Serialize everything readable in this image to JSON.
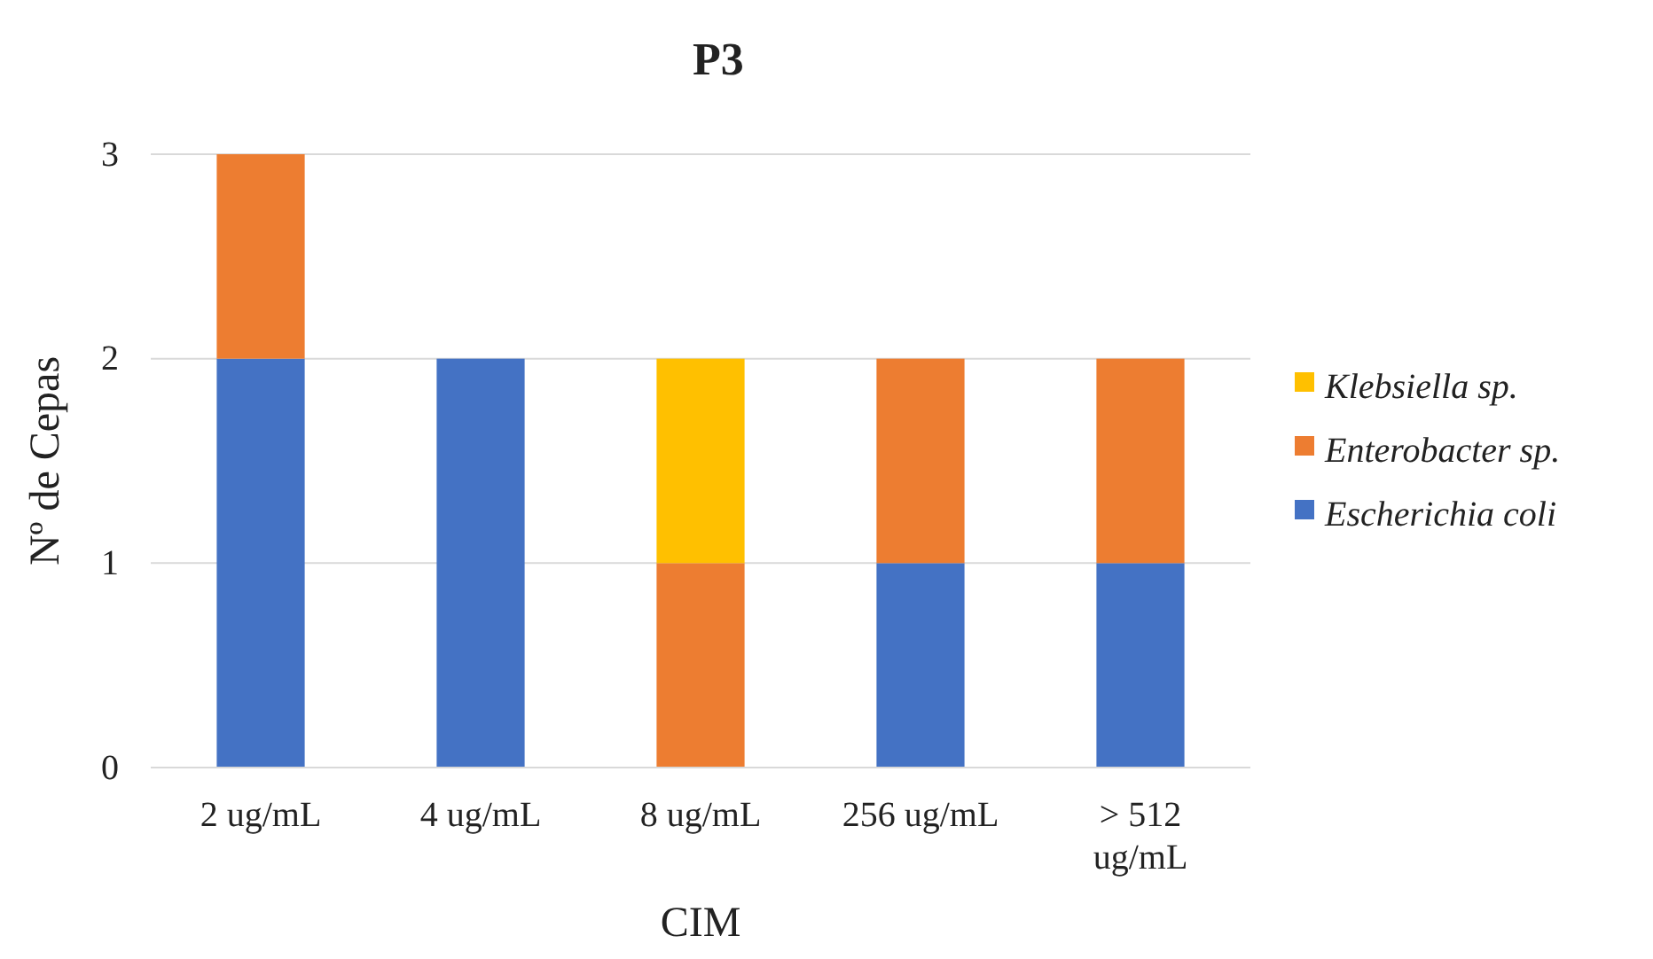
{
  "chart_data": {
    "type": "bar",
    "title": "P3",
    "xlabel": "CIM",
    "ylabel": "Nº de Cepas",
    "categories": [
      "2 ug/mL",
      "4 ug/mL",
      "8 ug/mL",
      "256 ug/mL",
      "> 512 ug/mL"
    ],
    "series": [
      {
        "name": "Escherichia coli",
        "color": "#4472c4",
        "values": [
          2,
          2,
          0,
          1,
          1
        ]
      },
      {
        "name": "Enterobacter sp.",
        "color": "#ed7d31",
        "values": [
          1,
          0,
          1,
          1,
          1
        ]
      },
      {
        "name": "Klebsiella sp.",
        "color": "#ffc000",
        "values": [
          0,
          0,
          1,
          0,
          0
        ]
      }
    ],
    "stacked": true,
    "ylim": [
      0,
      3
    ],
    "yticks": [
      0,
      1,
      2,
      3
    ],
    "grid": "y",
    "legend": "right"
  }
}
